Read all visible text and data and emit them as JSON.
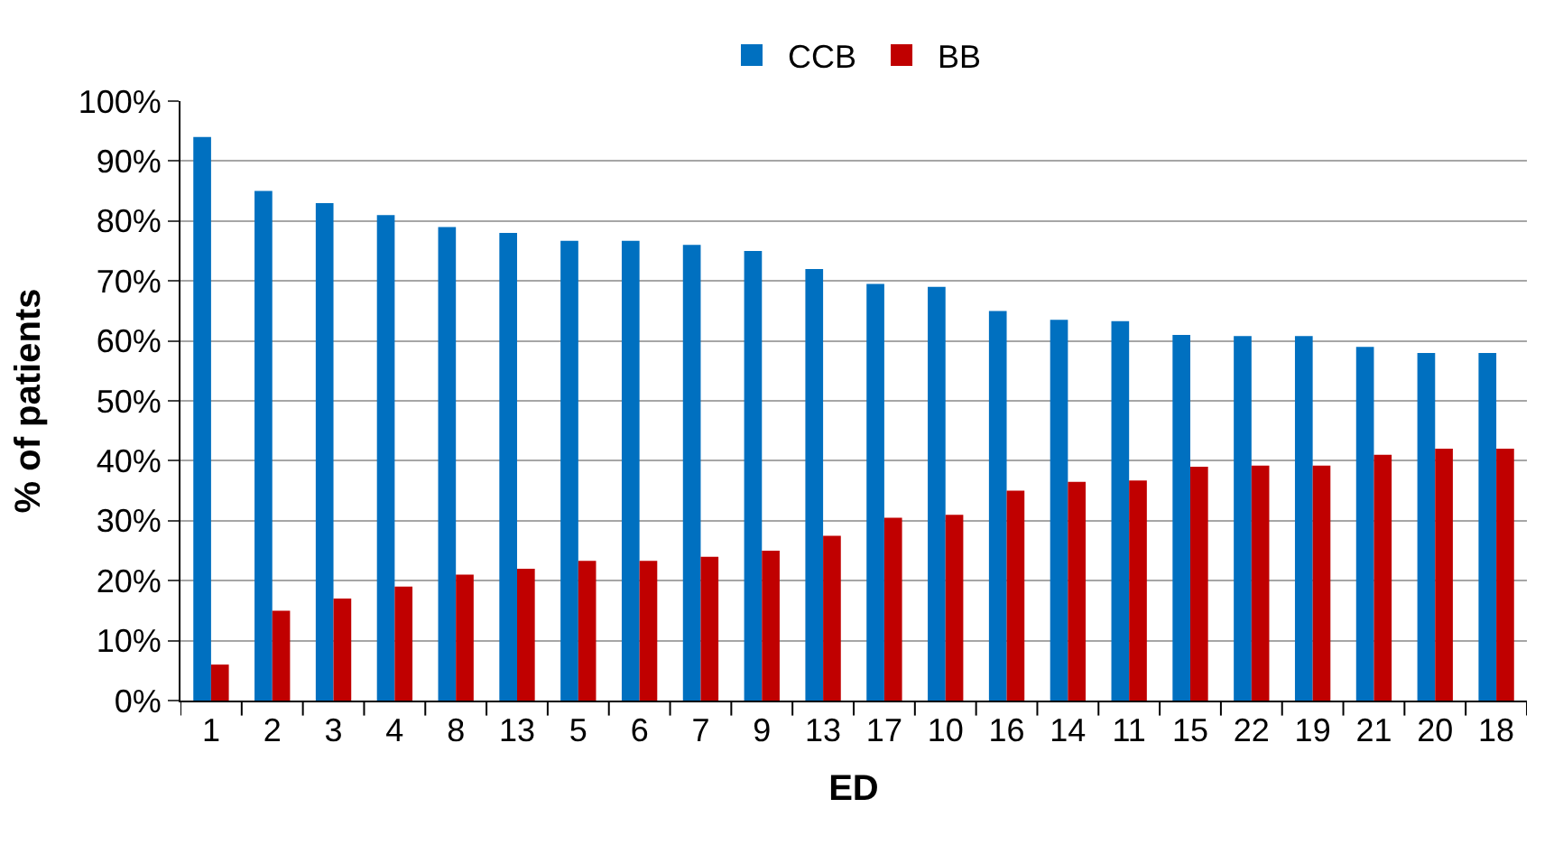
{
  "chart_data": {
    "type": "bar",
    "xlabel": "ED",
    "ylabel": "% of patients",
    "categories": [
      "1",
      "2",
      "3",
      "4",
      "8",
      "13",
      "5",
      "6",
      "7",
      "9",
      "13",
      "17",
      "10",
      "16",
      "14",
      "11",
      "15",
      "22",
      "19",
      "21",
      "20",
      "18"
    ],
    "series": [
      {
        "name": "CCB",
        "color": "#0070c0",
        "values": [
          94,
          85,
          83,
          81,
          79,
          78,
          76.7,
          76.7,
          76,
          75,
          72,
          69.5,
          69,
          65,
          63.5,
          63.3,
          61,
          60.8,
          60.8,
          59,
          58,
          58
        ]
      },
      {
        "name": "BB",
        "color": "#c00000",
        "values": [
          6,
          15,
          17,
          19,
          21,
          22,
          23.3,
          23.3,
          24,
          25,
          27.5,
          30.5,
          31,
          35,
          36.5,
          36.7,
          39,
          39.2,
          39.2,
          41,
          42,
          42
        ]
      }
    ],
    "ylim": [
      0,
      100
    ],
    "yticks": [
      {
        "value": 0,
        "label": "0%"
      },
      {
        "value": 10,
        "label": "10%"
      },
      {
        "value": 20,
        "label": "20%"
      },
      {
        "value": 30,
        "label": "30%"
      },
      {
        "value": 40,
        "label": "40%"
      },
      {
        "value": 50,
        "label": "50%"
      },
      {
        "value": 60,
        "label": "60%"
      },
      {
        "value": 70,
        "label": "70%"
      },
      {
        "value": 80,
        "label": "80%"
      },
      {
        "value": 90,
        "label": "90%"
      },
      {
        "value": 100,
        "label": "100%"
      }
    ],
    "grid": "y",
    "legend": "top"
  }
}
